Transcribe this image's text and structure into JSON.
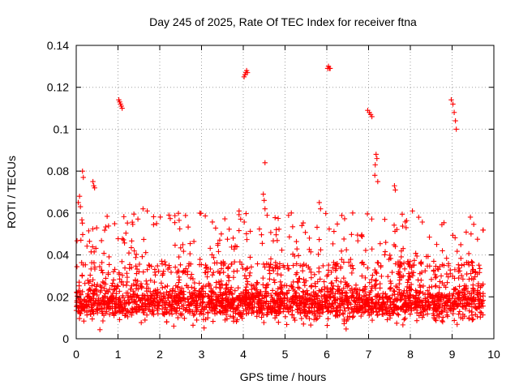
{
  "chart_data": {
    "type": "scatter",
    "title": "Day 245 of 2025, Rate Of TEC Index for receiver ftna",
    "xlabel": "GPS time / hours",
    "ylabel": "ROTI / TECUs",
    "xlim": [
      0,
      10
    ],
    "ylim": [
      0,
      0.14
    ],
    "x_ticks": [
      0,
      1,
      2,
      3,
      4,
      5,
      6,
      7,
      8,
      9,
      10
    ],
    "y_ticks": [
      0,
      0.02,
      0.04,
      0.06,
      0.08,
      0.1,
      0.12,
      0.14
    ],
    "x_tick_labels": [
      "0",
      "1",
      "2",
      "3",
      "4",
      "5",
      "6",
      "7",
      "8",
      "9",
      "10"
    ],
    "y_tick_labels": [
      "0",
      "0.02",
      "0.04",
      "0.06",
      "0.08",
      "0.1",
      "0.12",
      "0.14"
    ],
    "grid": true,
    "marker": "+",
    "series_color": "#ff0000",
    "series": [
      {
        "name": "ROTI",
        "data_range": {
          "x_min": 0.0,
          "x_max": 9.75
        },
        "outliers": [
          {
            "x": 1.02,
            "y": 0.114
          },
          {
            "x": 1.04,
            "y": 0.113
          },
          {
            "x": 1.06,
            "y": 0.112
          },
          {
            "x": 1.08,
            "y": 0.111
          },
          {
            "x": 1.1,
            "y": 0.11
          },
          {
            "x": 4.02,
            "y": 0.125
          },
          {
            "x": 4.04,
            "y": 0.126
          },
          {
            "x": 4.06,
            "y": 0.127
          },
          {
            "x": 4.08,
            "y": 0.128
          },
          {
            "x": 4.1,
            "y": 0.127
          },
          {
            "x": 6.02,
            "y": 0.129
          },
          {
            "x": 6.04,
            "y": 0.13
          },
          {
            "x": 6.06,
            "y": 0.129
          },
          {
            "x": 6.08,
            "y": 0.129
          },
          {
            "x": 6.98,
            "y": 0.109
          },
          {
            "x": 7.02,
            "y": 0.108
          },
          {
            "x": 7.05,
            "y": 0.107
          },
          {
            "x": 7.08,
            "y": 0.106
          },
          {
            "x": 8.98,
            "y": 0.114
          },
          {
            "x": 9.02,
            "y": 0.112
          },
          {
            "x": 9.05,
            "y": 0.108
          },
          {
            "x": 9.08,
            "y": 0.104
          },
          {
            "x": 9.1,
            "y": 0.1
          },
          {
            "x": 4.52,
            "y": 0.084
          },
          {
            "x": 0.15,
            "y": 0.08
          },
          {
            "x": 0.17,
            "y": 0.077
          },
          {
            "x": 0.4,
            "y": 0.075
          },
          {
            "x": 0.42,
            "y": 0.073
          },
          {
            "x": 0.44,
            "y": 0.072
          },
          {
            "x": 7.18,
            "y": 0.088
          },
          {
            "x": 7.2,
            "y": 0.086
          },
          {
            "x": 7.16,
            "y": 0.083
          },
          {
            "x": 7.15,
            "y": 0.078
          },
          {
            "x": 7.22,
            "y": 0.075
          },
          {
            "x": 7.62,
            "y": 0.073
          },
          {
            "x": 7.64,
            "y": 0.071
          },
          {
            "x": 4.48,
            "y": 0.069
          },
          {
            "x": 4.5,
            "y": 0.066
          },
          {
            "x": 4.52,
            "y": 0.062
          },
          {
            "x": 5.82,
            "y": 0.065
          },
          {
            "x": 5.85,
            "y": 0.062
          },
          {
            "x": 0.08,
            "y": 0.068
          },
          {
            "x": 0.05,
            "y": 0.065
          },
          {
            "x": 0.1,
            "y": 0.063
          },
          {
            "x": 1.6,
            "y": 0.062
          },
          {
            "x": 1.7,
            "y": 0.061
          },
          {
            "x": 2.22,
            "y": 0.059
          },
          {
            "x": 3.9,
            "y": 0.061
          },
          {
            "x": 5.15,
            "y": 0.06
          },
          {
            "x": 6.62,
            "y": 0.06
          },
          {
            "x": 8.05,
            "y": 0.061
          },
          {
            "x": 8.2,
            "y": 0.058
          }
        ]
      }
    ]
  }
}
